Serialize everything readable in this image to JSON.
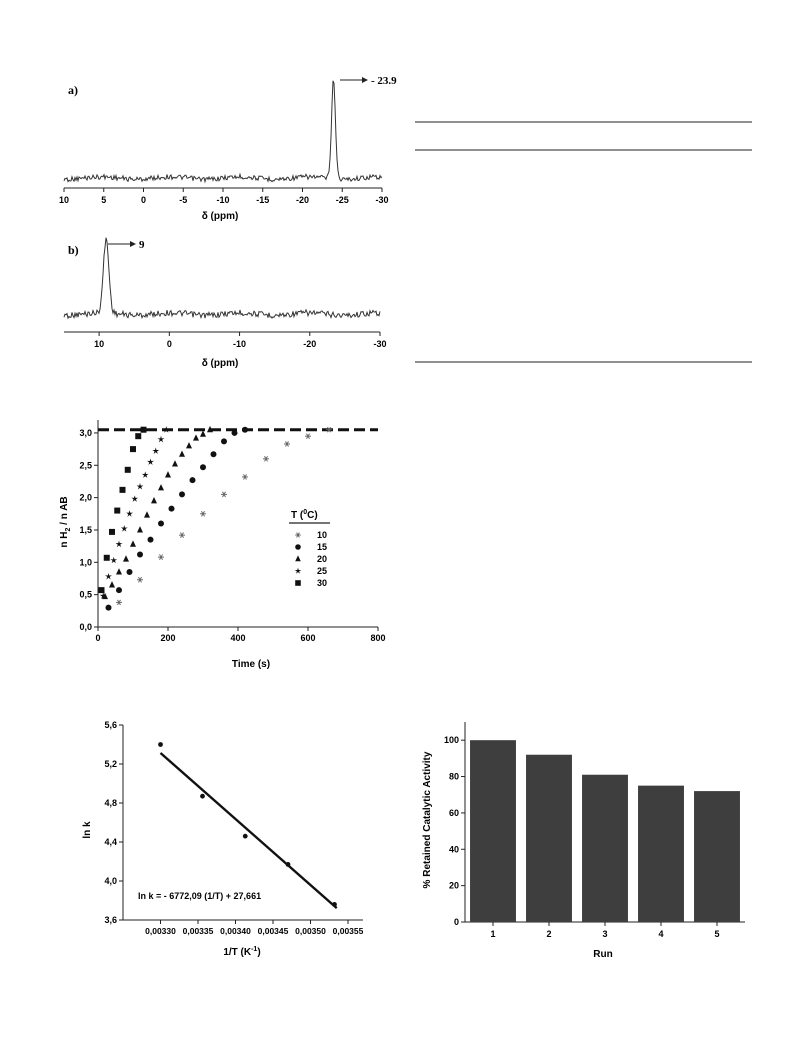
{
  "nmr_a": {
    "label": "a)",
    "annotation": "- 23.9",
    "xlabel": "δ (ppm)",
    "xticks": [
      "10",
      "5",
      "0",
      "-5",
      "-10",
      "-15",
      "-20",
      "-25",
      "-30"
    ],
    "xlim": [
      10,
      -30
    ],
    "peak_ppm": -23.9
  },
  "nmr_b": {
    "label": "b)",
    "annotation": "9",
    "xlabel": "δ (ppm)",
    "xticks": [
      "10",
      "0",
      "-10",
      "-20",
      "-30"
    ],
    "xlim": [
      15,
      -30
    ],
    "peak_ppm": 9
  },
  "h2_chart": {
    "xlabel": "Time (s)",
    "ylabel_parts": [
      "n H",
      "2",
      " / n AB"
    ],
    "xticks": [
      "0",
      "200",
      "400",
      "600",
      "800"
    ],
    "yticks": [
      "0,0",
      "0,5",
      "1,0",
      "1,5",
      "2,0",
      "2,5",
      "3,0"
    ],
    "legend_title_parts": [
      "T (",
      "0",
      "C)"
    ],
    "legend": [
      {
        "label": "10",
        "marker": "asterisk"
      },
      {
        "label": "15",
        "marker": "circle"
      },
      {
        "label": "20",
        "marker": "triangle"
      },
      {
        "label": "25",
        "marker": "star"
      },
      {
        "label": "30",
        "marker": "square"
      }
    ]
  },
  "arrhenius": {
    "xlabel_parts": [
      "1/T (K",
      "-1",
      ")"
    ],
    "ylabel": "ln k",
    "xticks": [
      "0,00330",
      "0,00335",
      "0,00340",
      "0,00345",
      "0,00350",
      "0,00355"
    ],
    "yticks": [
      "3,6",
      "4,0",
      "4,4",
      "4,8",
      "5,2",
      "5,6"
    ],
    "equation": "ln k = - 6772,09 (1/T) + 27,661"
  },
  "bar_chart": {
    "xlabel": "Run",
    "ylabel": "% Retained Catalytic Activity",
    "yticks": [
      "0",
      "20",
      "40",
      "60",
      "80",
      "100"
    ]
  },
  "chart_data": [
    {
      "type": "line",
      "title": "a)",
      "xlabel": "δ (ppm)",
      "xlim": [
        10,
        -30
      ],
      "annotations": [
        "- 23.9"
      ],
      "peaks": [
        {
          "x": -23.9
        }
      ]
    },
    {
      "type": "line",
      "title": "b)",
      "xlabel": "δ (ppm)",
      "xlim": [
        15,
        -30
      ],
      "annotations": [
        "9"
      ],
      "peaks": [
        {
          "x": 9
        }
      ]
    },
    {
      "type": "scatter",
      "xlabel": "Time (s)",
      "ylabel": "n H2 / n AB",
      "xlim": [
        0,
        800
      ],
      "ylim": [
        0,
        3.2
      ],
      "reference_line": {
        "y": 3.05,
        "style": "dashed"
      },
      "series": [
        {
          "name": "10",
          "marker": "asterisk",
          "x": [
            60,
            120,
            180,
            240,
            300,
            360,
            420,
            480,
            540,
            600,
            660
          ],
          "y": [
            0.38,
            0.73,
            1.08,
            1.42,
            1.75,
            2.05,
            2.32,
            2.6,
            2.83,
            2.95,
            3.05
          ]
        },
        {
          "name": "15",
          "marker": "circle",
          "x": [
            30,
            60,
            90,
            120,
            150,
            180,
            210,
            240,
            270,
            300,
            330,
            360,
            390,
            420
          ],
          "y": [
            0.3,
            0.57,
            0.85,
            1.12,
            1.35,
            1.6,
            1.83,
            2.05,
            2.27,
            2.47,
            2.67,
            2.87,
            3.0,
            3.05
          ]
        },
        {
          "name": "20",
          "marker": "triangle",
          "x": [
            20,
            40,
            60,
            80,
            100,
            120,
            140,
            160,
            180,
            200,
            220,
            240,
            260,
            280,
            300,
            320
          ],
          "y": [
            0.47,
            0.65,
            0.85,
            1.05,
            1.28,
            1.5,
            1.73,
            1.95,
            2.15,
            2.35,
            2.52,
            2.67,
            2.8,
            2.92,
            2.98,
            3.05
          ]
        },
        {
          "name": "25",
          "marker": "star",
          "x": [
            15,
            30,
            45,
            60,
            75,
            90,
            105,
            120,
            135,
            150,
            165,
            180,
            195
          ],
          "y": [
            0.48,
            0.78,
            1.03,
            1.28,
            1.52,
            1.75,
            1.98,
            2.17,
            2.35,
            2.55,
            2.72,
            2.9,
            3.05
          ]
        },
        {
          "name": "30",
          "marker": "square",
          "x": [
            10,
            25,
            40,
            55,
            70,
            85,
            100,
            115,
            130
          ],
          "y": [
            0.57,
            1.07,
            1.47,
            1.8,
            2.12,
            2.43,
            2.75,
            2.95,
            3.05
          ]
        }
      ]
    },
    {
      "type": "scatter",
      "xlabel": "1/T (K-1)",
      "ylabel": "ln k",
      "xlim": [
        0.00325,
        0.00357
      ],
      "ylim": [
        3.6,
        5.6
      ],
      "annotations": [
        "ln k = - 6772,09 (1/T) + 27,661"
      ],
      "series": [
        {
          "name": "",
          "x": [
            0.0033,
            0.003356,
            0.003413,
            0.00347,
            0.003532
          ],
          "y": [
            5.4,
            4.87,
            4.46,
            4.17,
            3.76
          ]
        }
      ],
      "fit": {
        "slope": -6772.09,
        "intercept": 27.661
      }
    },
    {
      "type": "bar",
      "xlabel": "Run",
      "ylabel": "% Retained Catalytic Activity",
      "categories": [
        "1",
        "2",
        "3",
        "4",
        "5"
      ],
      "values": [
        100,
        92,
        81,
        75,
        72
      ],
      "ylim": [
        0,
        110
      ]
    }
  ]
}
